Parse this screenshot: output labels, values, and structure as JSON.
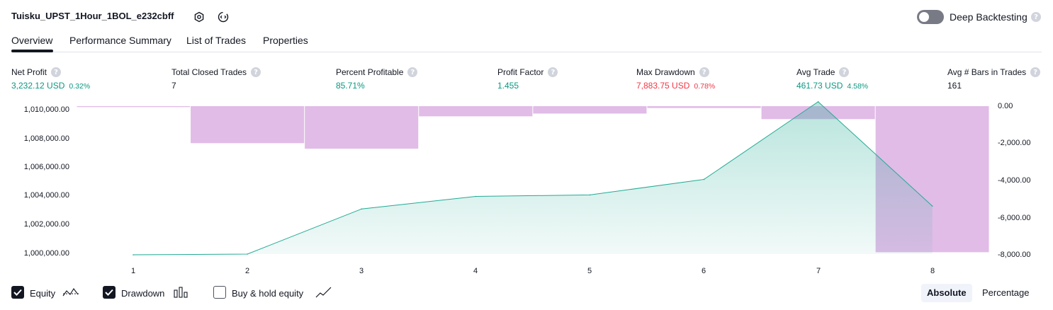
{
  "header": {
    "strategy_title": "Tuisku_UPST_1Hour_1BOL_e232cbff",
    "deep_backtesting_label": "Deep Backtesting",
    "deep_backtesting_on": false,
    "help_glyph": "?"
  },
  "tabs": [
    {
      "label": "Overview",
      "active": true
    },
    {
      "label": "Performance Summary",
      "active": false
    },
    {
      "label": "List of Trades",
      "active": false
    },
    {
      "label": "Properties",
      "active": false
    }
  ],
  "metrics": [
    {
      "label": "Net Profit",
      "value": "3,232.12 USD",
      "sub": "0.32%",
      "color": "green"
    },
    {
      "label": "Total Closed Trades",
      "value": "7",
      "sub": "",
      "color": "dark"
    },
    {
      "label": "Percent Profitable",
      "value": "85.71%",
      "sub": "",
      "color": "green"
    },
    {
      "label": "Profit Factor",
      "value": "1.455",
      "sub": "",
      "color": "green"
    },
    {
      "label": "Max Drawdown",
      "value": "7,883.75 USD",
      "sub": "0.78%",
      "color": "red"
    },
    {
      "label": "Avg Trade",
      "value": "461.73 USD",
      "sub": "4.58%",
      "color": "green"
    },
    {
      "label": "Avg # Bars in Trades",
      "value": "161",
      "sub": "",
      "color": "dark"
    }
  ],
  "chart_data": {
    "type": "area",
    "x_ticks": [
      "1",
      "2",
      "3",
      "4",
      "5",
      "6",
      "7",
      "8"
    ],
    "left_axis_ticks": [
      "1,010,000.00",
      "1,008,000.00",
      "1,006,000.00",
      "1,004,000.00",
      "1,002,000.00",
      "1,000,000.00"
    ],
    "right_axis_ticks": [
      "0.00",
      "-2,000.00",
      "-4,000.00",
      "-6,000.00",
      "-8,000.00"
    ],
    "left_ylim": [
      1000000,
      1010000
    ],
    "right_ylim": [
      -8000,
      0
    ],
    "series": [
      {
        "name": "Equity",
        "kind": "area",
        "axis": "left",
        "values": [
          999950,
          1000000,
          1003050,
          1003900,
          1004000,
          1005050,
          1010300,
          1003250
        ]
      },
      {
        "name": "Drawdown",
        "kind": "bar",
        "axis": "right",
        "values": [
          -50,
          -2000,
          -2300,
          -550,
          -400,
          -100,
          -700,
          -7900
        ]
      }
    ],
    "colors": {
      "equity_line": "#22ab94",
      "equity_fill": "#22ab94",
      "drawdown_bar": "#ce93d8"
    }
  },
  "legend": {
    "equity": {
      "label": "Equity",
      "checked": true
    },
    "drawdown": {
      "label": "Drawdown",
      "checked": true
    },
    "buy_hold": {
      "label": "Buy & hold equity",
      "checked": false
    }
  },
  "view_toggle": {
    "absolute": "Absolute",
    "percentage": "Percentage",
    "active": "absolute"
  }
}
